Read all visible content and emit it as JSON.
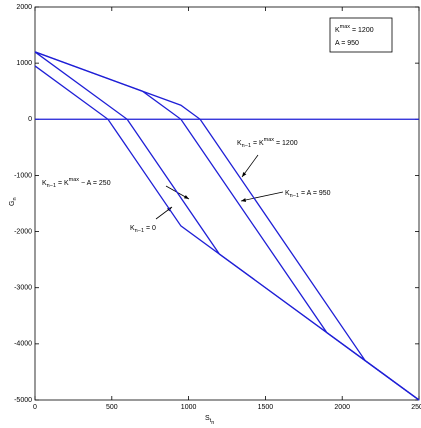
{
  "chart_data": {
    "type": "line",
    "x_label": [
      "S",
      "t",
      "n"
    ],
    "y_label": [
      "G",
      "n"
    ],
    "xlim": [
      0,
      2500
    ],
    "ylim": [
      -5000,
      2000
    ],
    "xticks": [
      0,
      500,
      1000,
      1500,
      2000,
      2500
    ],
    "yticks": [
      -5000,
      -4000,
      -3000,
      -2000,
      -1000,
      0,
      1000,
      2000
    ],
    "series": [
      {
        "color": "#1f1fd6",
        "x": [
          0,
          475,
          950,
          2500
        ],
        "values": [
          950,
          0,
          -1900,
          -5000
        ]
      },
      {
        "color": "#1f1fd6",
        "x": [
          0,
          600,
          1200,
          2500
        ],
        "values": [
          1200,
          0,
          -2400,
          -5000
        ]
      },
      {
        "color": "#1f1fd6",
        "x": [
          0,
          700,
          950,
          1900,
          2500
        ],
        "values": [
          1200,
          500,
          0,
          -3800,
          -5000
        ]
      },
      {
        "color": "#1f1fd6",
        "x": [
          0,
          700,
          950,
          1075,
          2150,
          2500
        ],
        "values": [
          1200,
          500,
          250,
          0,
          -4300,
          -5000
        ]
      },
      {
        "color": "#1f1fd6",
        "x": [
          0,
          2500
        ],
        "values": [
          0,
          0
        ]
      }
    ],
    "legend_box": [
      [
        "K",
        "max",
        " = 1200"
      ],
      [
        "A = 950"
      ]
    ],
    "annotations": [
      [
        "K",
        "n−1",
        " = K",
        "max",
        " = 1200"
      ],
      [
        "K",
        "n−1",
        " = A = 950"
      ],
      [
        "K",
        "n−1",
        " = K",
        "max",
        " − A = 250"
      ],
      [
        "K",
        "n−1",
        " = 0"
      ]
    ]
  }
}
